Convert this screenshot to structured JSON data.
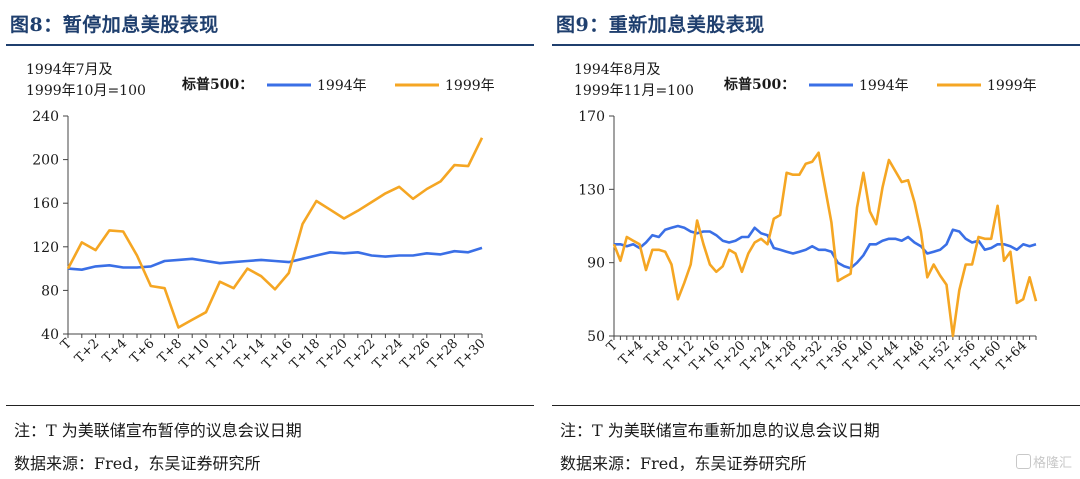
{
  "charts": [
    {
      "figure_title": "图8：暂停加息美股表现",
      "note": "注：T 为美联储宣布暂停的议息会议日期",
      "source": "数据来源：Fred，东吴证券研究所",
      "base_label_line1": "1994年7月及",
      "base_label_line2": "1999年10月=100",
      "legend_prefix": "标普500："
    },
    {
      "figure_title": "图9：重新加息美股表现",
      "note": "注：T 为美联储宣布重新加息的议息会议日期",
      "source": "数据来源：Fred，东吴证券研究所",
      "base_label_line1": "1994年8月及",
      "base_label_line2": "1999年11月=100",
      "legend_prefix": "标普500："
    }
  ],
  "watermark": "格隆汇",
  "chart_data": [
    {
      "type": "line",
      "title": "图8：暂停加息美股表现",
      "ylim": [
        40,
        240
      ],
      "yticks": [
        40,
        80,
        120,
        160,
        200,
        240
      ],
      "x": [
        "T",
        "T+1",
        "T+2",
        "T+3",
        "T+4",
        "T+5",
        "T+6",
        "T+7",
        "T+8",
        "T+9",
        "T+10",
        "T+11",
        "T+12",
        "T+13",
        "T+14",
        "T+15",
        "T+16",
        "T+17",
        "T+18",
        "T+19",
        "T+20",
        "T+21",
        "T+22",
        "T+23",
        "T+24",
        "T+25",
        "T+26",
        "T+27",
        "T+28",
        "T+29",
        "T+30"
      ],
      "xtick_labels": [
        "T",
        "T+2",
        "T+4",
        "T+6",
        "T+8",
        "T+10",
        "T+12",
        "T+14",
        "T+16",
        "T+18",
        "T+20",
        "T+22",
        "T+24",
        "T+26",
        "T+28",
        "T+30"
      ],
      "series": [
        {
          "name": "1994年",
          "color": "#3a6fe6",
          "values": [
            100,
            99,
            102,
            103,
            101,
            101,
            102,
            107,
            108,
            109,
            107,
            105,
            106,
            107,
            108,
            107,
            106,
            109,
            112,
            115,
            114,
            115,
            112,
            111,
            112,
            112,
            114,
            113,
            116,
            115,
            119
          ]
        },
        {
          "name": "1999年",
          "color": "#f5a623",
          "values": [
            100,
            124,
            117,
            135,
            134,
            112,
            84,
            82,
            46,
            53,
            60,
            88,
            82,
            100,
            93,
            81,
            96,
            141,
            162,
            154,
            146,
            153,
            161,
            169,
            175,
            164,
            173,
            180,
            195,
            194,
            220
          ]
        }
      ]
    },
    {
      "type": "line",
      "title": "图9：重新加息美股表现",
      "ylim": [
        50,
        170
      ],
      "yticks": [
        50,
        90,
        130,
        170
      ],
      "x": [
        "T",
        "T+1",
        "T+2",
        "T+3",
        "T+4",
        "T+5",
        "T+6",
        "T+7",
        "T+8",
        "T+9",
        "T+10",
        "T+11",
        "T+12",
        "T+13",
        "T+14",
        "T+15",
        "T+16",
        "T+17",
        "T+18",
        "T+19",
        "T+20",
        "T+21",
        "T+22",
        "T+23",
        "T+24",
        "T+25",
        "T+26",
        "T+27",
        "T+28",
        "T+29",
        "T+30",
        "T+31",
        "T+32",
        "T+33",
        "T+34",
        "T+35",
        "T+36",
        "T+37",
        "T+38",
        "T+39",
        "T+40",
        "T+41",
        "T+42",
        "T+43",
        "T+44",
        "T+45",
        "T+46",
        "T+47",
        "T+48",
        "T+49",
        "T+50",
        "T+51",
        "T+52",
        "T+53",
        "T+54",
        "T+55",
        "T+56",
        "T+57",
        "T+58",
        "T+59",
        "T+60",
        "T+61",
        "T+62",
        "T+63",
        "T+64",
        "T+65",
        "T+66"
      ],
      "xtick_labels": [
        "T",
        "T+4",
        "T+8",
        "T+12",
        "T+16",
        "T+20",
        "T+24",
        "T+28",
        "T+32",
        "T+36",
        "T+40",
        "T+44",
        "T+48",
        "T+52",
        "T+56",
        "T+60",
        "T+64"
      ],
      "series": [
        {
          "name": "1994年",
          "color": "#3a6fe6",
          "values": [
            100,
            100,
            99,
            100,
            98,
            101,
            105,
            104,
            108,
            109,
            110,
            109,
            107,
            106,
            107,
            107,
            105,
            102,
            101,
            102,
            104,
            104,
            109,
            106,
            105,
            98,
            97,
            96,
            95,
            96,
            97,
            99,
            97,
            97,
            96,
            90,
            88,
            87,
            90,
            94,
            100,
            100,
            102,
            103,
            103,
            102,
            104,
            101,
            99,
            95,
            96,
            97,
            100,
            108,
            107,
            103,
            101,
            102,
            97,
            98,
            100,
            100,
            99,
            97,
            100,
            99,
            100
          ]
        },
        {
          "name": "1999年",
          "color": "#f5a623",
          "values": [
            100,
            91,
            104,
            102,
            100,
            86,
            97,
            97,
            96,
            89,
            70,
            79,
            89,
            113,
            100,
            89,
            85,
            88,
            97,
            95,
            85,
            95,
            101,
            103,
            100,
            114,
            116,
            139,
            138,
            138,
            144,
            145,
            150,
            131,
            112,
            80,
            82,
            84,
            120,
            139,
            118,
            111,
            131,
            146,
            140,
            134,
            135,
            123,
            107,
            82,
            89,
            83,
            78,
            50,
            75,
            89,
            89,
            104,
            103,
            103,
            121,
            91,
            96,
            68,
            70,
            82,
            69
          ]
        }
      ]
    }
  ]
}
